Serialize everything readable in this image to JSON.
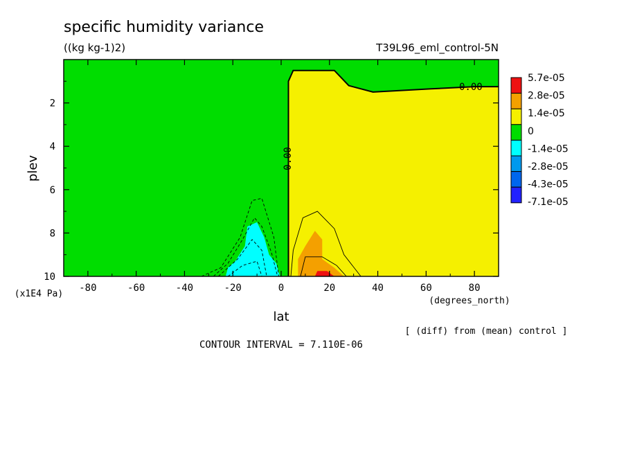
{
  "chart_data": {
    "type": "heatmap",
    "title": "specific humidity variance",
    "units": "((kg kg-1)2)",
    "dataset": "T39L96_eml_control-5N",
    "xlabel": "lat",
    "xunits": "(degrees_north)",
    "ylabel": "plev",
    "yunits": "(x1E4 Pa)",
    "xlim": [
      -90,
      90
    ],
    "ylim": [
      10,
      0
    ],
    "xticks": [
      "-80",
      "-60",
      "-40",
      "-20",
      "0",
      "20",
      "40",
      "60",
      "80"
    ],
    "xtick_values": [
      -80,
      -60,
      -40,
      -20,
      0,
      20,
      40,
      60,
      80
    ],
    "yticks": [
      "2",
      "4",
      "6",
      "8",
      "10"
    ],
    "ytick_values": [
      2,
      4,
      6,
      8,
      10
    ],
    "legend": {
      "placement": "right",
      "labels": [
        "5.7e-05",
        "2.8e-05",
        "1.4e-05",
        "0",
        "-1.4e-05",
        "-2.8e-05",
        "-4.3e-05",
        "-7.1e-05"
      ],
      "colors": [
        "#ee1111",
        "#f4a000",
        "#f5f000",
        "#00dd00",
        "#00ffff",
        "#0099ee",
        "#0066ee",
        "#2222ff"
      ]
    },
    "contour_labels": [
      "0.00",
      "0.00"
    ],
    "footnote": "[ (diff) from (mean) control ]",
    "contour_interval": "CONTOUR INTERVAL = 7.110E-06",
    "regions": [
      {
        "level": "0",
        "color": "#f5f000",
        "outline": [
          [
            3,
            10
          ],
          [
            3,
            1.0
          ],
          [
            5,
            0.5
          ],
          [
            22,
            0.5
          ],
          [
            28,
            1.2
          ],
          [
            38,
            1.5
          ],
          [
            62,
            1.35
          ],
          [
            80,
            1.25
          ],
          [
            90,
            1.25
          ],
          [
            90,
            10
          ]
        ]
      },
      {
        "level": "1.4e-05",
        "color": "#f4a000",
        "outline": [
          [
            7,
            10
          ],
          [
            7,
            9.2
          ],
          [
            10,
            8.6
          ],
          [
            14,
            7.9
          ],
          [
            17,
            8.3
          ],
          [
            17,
            9.2
          ],
          [
            22,
            9.6
          ],
          [
            26,
            10
          ]
        ]
      },
      {
        "level": "2.8e-05",
        "color": "#f4a000",
        "outline": [
          [
            13,
            10
          ],
          [
            14,
            9.6
          ],
          [
            18,
            9.55
          ],
          [
            23,
            9.8
          ],
          [
            25,
            10
          ]
        ]
      },
      {
        "level": "5.7e-05",
        "color": "#ee1111",
        "outline": [
          [
            14,
            10
          ],
          [
            15,
            9.75
          ],
          [
            19,
            9.75
          ],
          [
            22,
            10
          ]
        ]
      },
      {
        "level": "-1.4e-05",
        "color": "#00ffff",
        "outline": [
          [
            -23,
            10
          ],
          [
            -22,
            9.6
          ],
          [
            -19,
            9.3
          ],
          [
            -15,
            8.6
          ],
          [
            -14,
            7.7
          ],
          [
            -10,
            7.5
          ],
          [
            -7,
            8.2
          ],
          [
            -5,
            9.0
          ],
          [
            -2,
            9.4
          ],
          [
            -0.5,
            10
          ]
        ]
      },
      {
        "level": "-2.8e-05",
        "color": "#00ffff",
        "outline": [
          [
            -20,
            10
          ],
          [
            -18,
            9.5
          ],
          [
            -12,
            9.1
          ],
          [
            -9,
            9.5
          ],
          [
            -8,
            10
          ]
        ]
      }
    ],
    "contour_lines": [
      {
        "level": "0",
        "style": "solid",
        "points": [
          [
            3,
            10
          ],
          [
            3,
            1.0
          ],
          [
            5,
            0.5
          ],
          [
            22,
            0.5
          ],
          [
            28,
            1.2
          ],
          [
            38,
            1.5
          ],
          [
            62,
            1.35
          ],
          [
            80,
            1.25
          ],
          [
            90,
            1.25
          ]
        ]
      },
      {
        "level": "7.1e-06",
        "style": "solid",
        "points": [
          [
            4,
            10
          ],
          [
            5,
            8.8
          ],
          [
            9,
            7.3
          ],
          [
            15,
            7.0
          ],
          [
            22,
            7.8
          ],
          [
            26,
            9.0
          ],
          [
            33,
            10
          ]
        ]
      },
      {
        "level": "2.1e-05",
        "style": "solid",
        "points": [
          [
            8,
            10
          ],
          [
            10,
            9.1
          ],
          [
            17,
            9.1
          ],
          [
            23,
            9.5
          ],
          [
            27,
            10
          ]
        ]
      },
      {
        "level": "-7.1e-06",
        "style": "dashed",
        "points": [
          [
            -33,
            10
          ],
          [
            -25,
            9.6
          ],
          [
            -17,
            8.2
          ],
          [
            -12,
            6.5
          ],
          [
            -8,
            6.4
          ],
          [
            -3,
            8.2
          ],
          [
            -1,
            10
          ]
        ]
      },
      {
        "level": "-1.4e-05",
        "style": "dashed",
        "points": [
          [
            -28,
            10
          ],
          [
            -22,
            9.4
          ],
          [
            -16,
            8.3
          ],
          [
            -11,
            7.3
          ],
          [
            -8,
            7.7
          ],
          [
            -4,
            8.9
          ],
          [
            -1.5,
            10
          ]
        ]
      },
      {
        "level": "-2.1e-05",
        "style": "dashed",
        "points": [
          [
            -26,
            10
          ],
          [
            -18,
            9.2
          ],
          [
            -12,
            8.3
          ],
          [
            -8,
            8.8
          ],
          [
            -6,
            10
          ]
        ]
      },
      {
        "level": "-2.8e-05",
        "style": "dashed",
        "points": [
          [
            -22,
            10
          ],
          [
            -16,
            9.5
          ],
          [
            -10,
            9.3
          ],
          [
            -8,
            10
          ]
        ]
      }
    ]
  }
}
